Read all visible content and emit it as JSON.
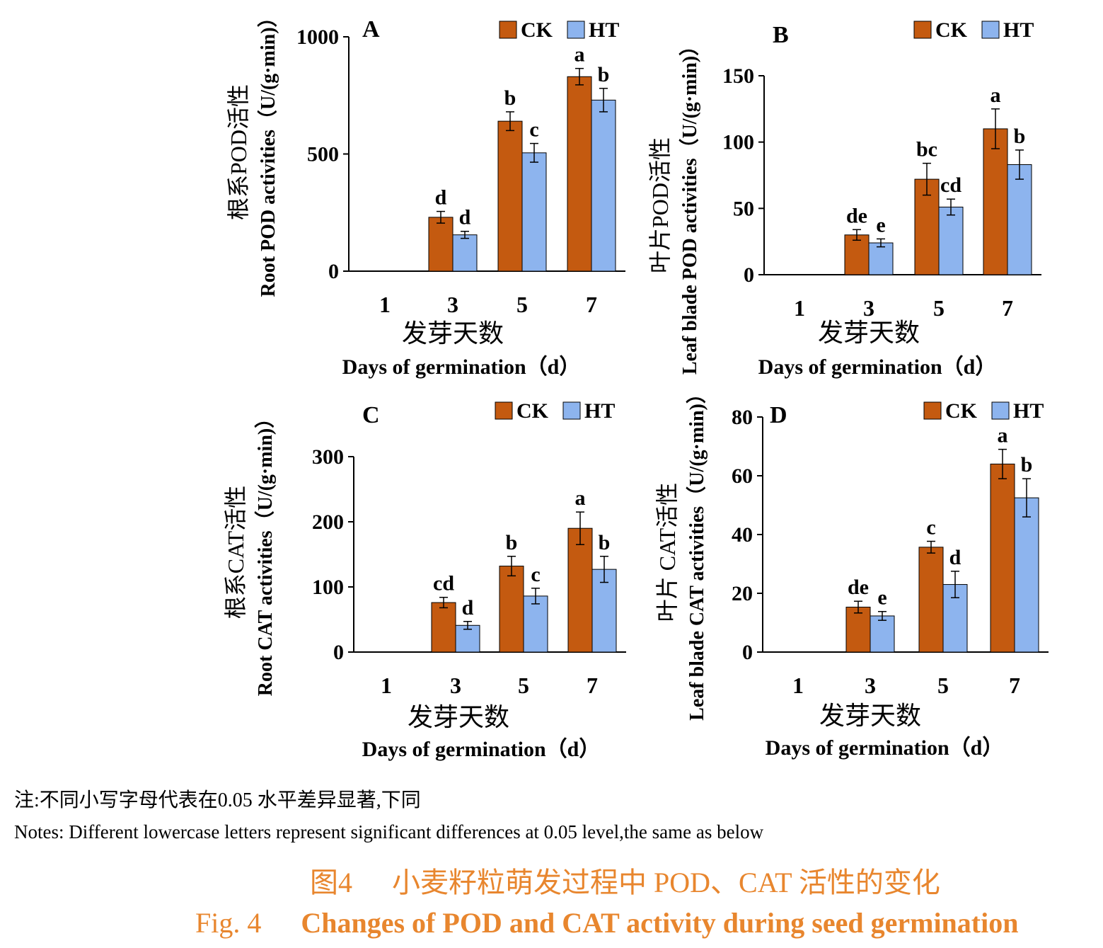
{
  "colors": {
    "ck": "#C45A10",
    "ht": "#8DB4EE"
  },
  "chart_data": [
    {
      "type": "bar",
      "panel": "A",
      "categories": [
        "1",
        "3",
        "5",
        "7"
      ],
      "series": [
        {
          "name": "CK",
          "values": [
            0,
            230,
            640,
            830
          ],
          "errors": [
            0,
            25,
            40,
            35
          ],
          "labels": [
            "",
            "d",
            "b",
            "a"
          ]
        },
        {
          "name": "HT",
          "values": [
            0,
            155,
            505,
            730
          ],
          "errors": [
            0,
            15,
            40,
            50
          ],
          "labels": [
            "",
            "d",
            "c",
            "b"
          ]
        }
      ],
      "ylim": [
        0,
        1000
      ],
      "yticks": [
        0,
        500,
        1000
      ],
      "xlabel_cn": "发芽天数",
      "xlabel_en": "Days of germination（d）",
      "ylabel_cn": "根系POD活性",
      "ylabel_en": "Root POD activities（U/(g·min)）"
    },
    {
      "type": "bar",
      "panel": "B",
      "categories": [
        "1",
        "3",
        "5",
        "7"
      ],
      "series": [
        {
          "name": "CK",
          "values": [
            0,
            30,
            72,
            110
          ],
          "errors": [
            0,
            4,
            12,
            15
          ],
          "labels": [
            "",
            "de",
            "bc",
            "a"
          ]
        },
        {
          "name": "HT",
          "values": [
            0,
            24,
            51,
            83
          ],
          "errors": [
            0,
            3,
            6,
            11
          ],
          "labels": [
            "",
            "e",
            "cd",
            "b"
          ]
        }
      ],
      "ylim": [
        0,
        150
      ],
      "yticks": [
        0,
        50,
        100,
        150
      ],
      "xlabel_cn": "发芽天数",
      "xlabel_en": "Days of germination（d）",
      "ylabel_cn": "叶片POD活性",
      "ylabel_en": "Leaf blade POD activities（U/(g·min)）"
    },
    {
      "type": "bar",
      "panel": "C",
      "categories": [
        "1",
        "3",
        "5",
        "7"
      ],
      "series": [
        {
          "name": "CK",
          "values": [
            0,
            76,
            132,
            190
          ],
          "errors": [
            0,
            8,
            15,
            25
          ],
          "labels": [
            "",
            "cd",
            "b",
            "a"
          ]
        },
        {
          "name": "HT",
          "values": [
            0,
            41,
            86,
            127
          ],
          "errors": [
            0,
            6,
            12,
            20
          ],
          "labels": [
            "",
            "d",
            "c",
            "b"
          ]
        }
      ],
      "ylim": [
        0,
        300
      ],
      "yticks": [
        0,
        100,
        200,
        300
      ],
      "xlabel_cn": "发芽天数",
      "xlabel_en": "Days of germination（d）",
      "ylabel_cn": "根系CAT活性",
      "ylabel_en": "Root CAT activities（U/(g·min)）"
    },
    {
      "type": "bar",
      "panel": "D",
      "categories": [
        "1",
        "3",
        "5",
        "7"
      ],
      "series": [
        {
          "name": "CK",
          "values": [
            0,
            15.3,
            35.7,
            64
          ],
          "errors": [
            0,
            2,
            2,
            5
          ],
          "labels": [
            "",
            "de",
            "c",
            "a"
          ]
        },
        {
          "name": "HT",
          "values": [
            0,
            12.3,
            23,
            52.5
          ],
          "errors": [
            0,
            1.5,
            4.5,
            6.5
          ],
          "labels": [
            "",
            "e",
            "d",
            "b"
          ]
        }
      ],
      "ylim": [
        0,
        80
      ],
      "yticks": [
        0,
        20,
        40,
        60,
        80
      ],
      "xlabel_cn": "发芽天数",
      "xlabel_en": "Days of germination（d）",
      "ylabel_cn": "叶片 CAT活性",
      "ylabel_en": "Leaf blade CAT activities（U/(g·min)）"
    }
  ],
  "notes": {
    "cn": "注:不同小写字母代表在0.05 水平差异显著,下同",
    "en": "Notes: Different lowercase letters represent significant differences at 0.05 level,the same as below"
  },
  "caption": {
    "cn_num": "图4",
    "cn_title": "小麦籽粒萌发过程中 POD、CAT 活性的变化",
    "en_num": "Fig. 4",
    "en_title": "Changes of POD and CAT activity during seed germination"
  }
}
